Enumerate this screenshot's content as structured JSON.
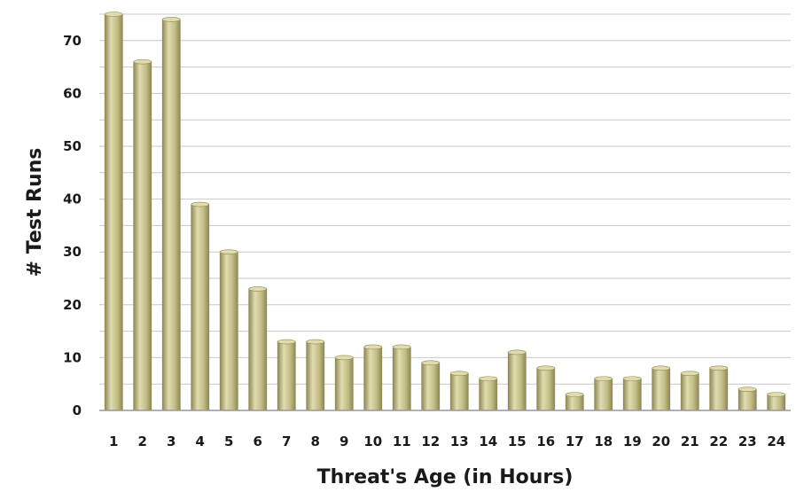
{
  "chart_data": {
    "type": "bar",
    "title": "",
    "xlabel": "Threat's Age (in Hours)",
    "ylabel": "# Test Runs",
    "ylim": [
      0,
      75
    ],
    "yticks": [
      0,
      10,
      20,
      30,
      40,
      50,
      60,
      70
    ],
    "grid": true,
    "categories": [
      "1",
      "2",
      "3",
      "4",
      "5",
      "6",
      "7",
      "8",
      "9",
      "10",
      "11",
      "12",
      "13",
      "14",
      "15",
      "16",
      "17",
      "18",
      "19",
      "20",
      "21",
      "22",
      "23",
      "24"
    ],
    "values": [
      75,
      66,
      74,
      39,
      30,
      23,
      13,
      13,
      10,
      12,
      12,
      9,
      7,
      6,
      11,
      8,
      3,
      6,
      6,
      8,
      7,
      8,
      4,
      3
    ],
    "colors": {
      "bar_light": "#e0dcb0",
      "bar_mid": "#c3bd86",
      "bar_dark": "#8f8a56",
      "grid": "#c8c8c8",
      "axis": "#999999"
    }
  }
}
